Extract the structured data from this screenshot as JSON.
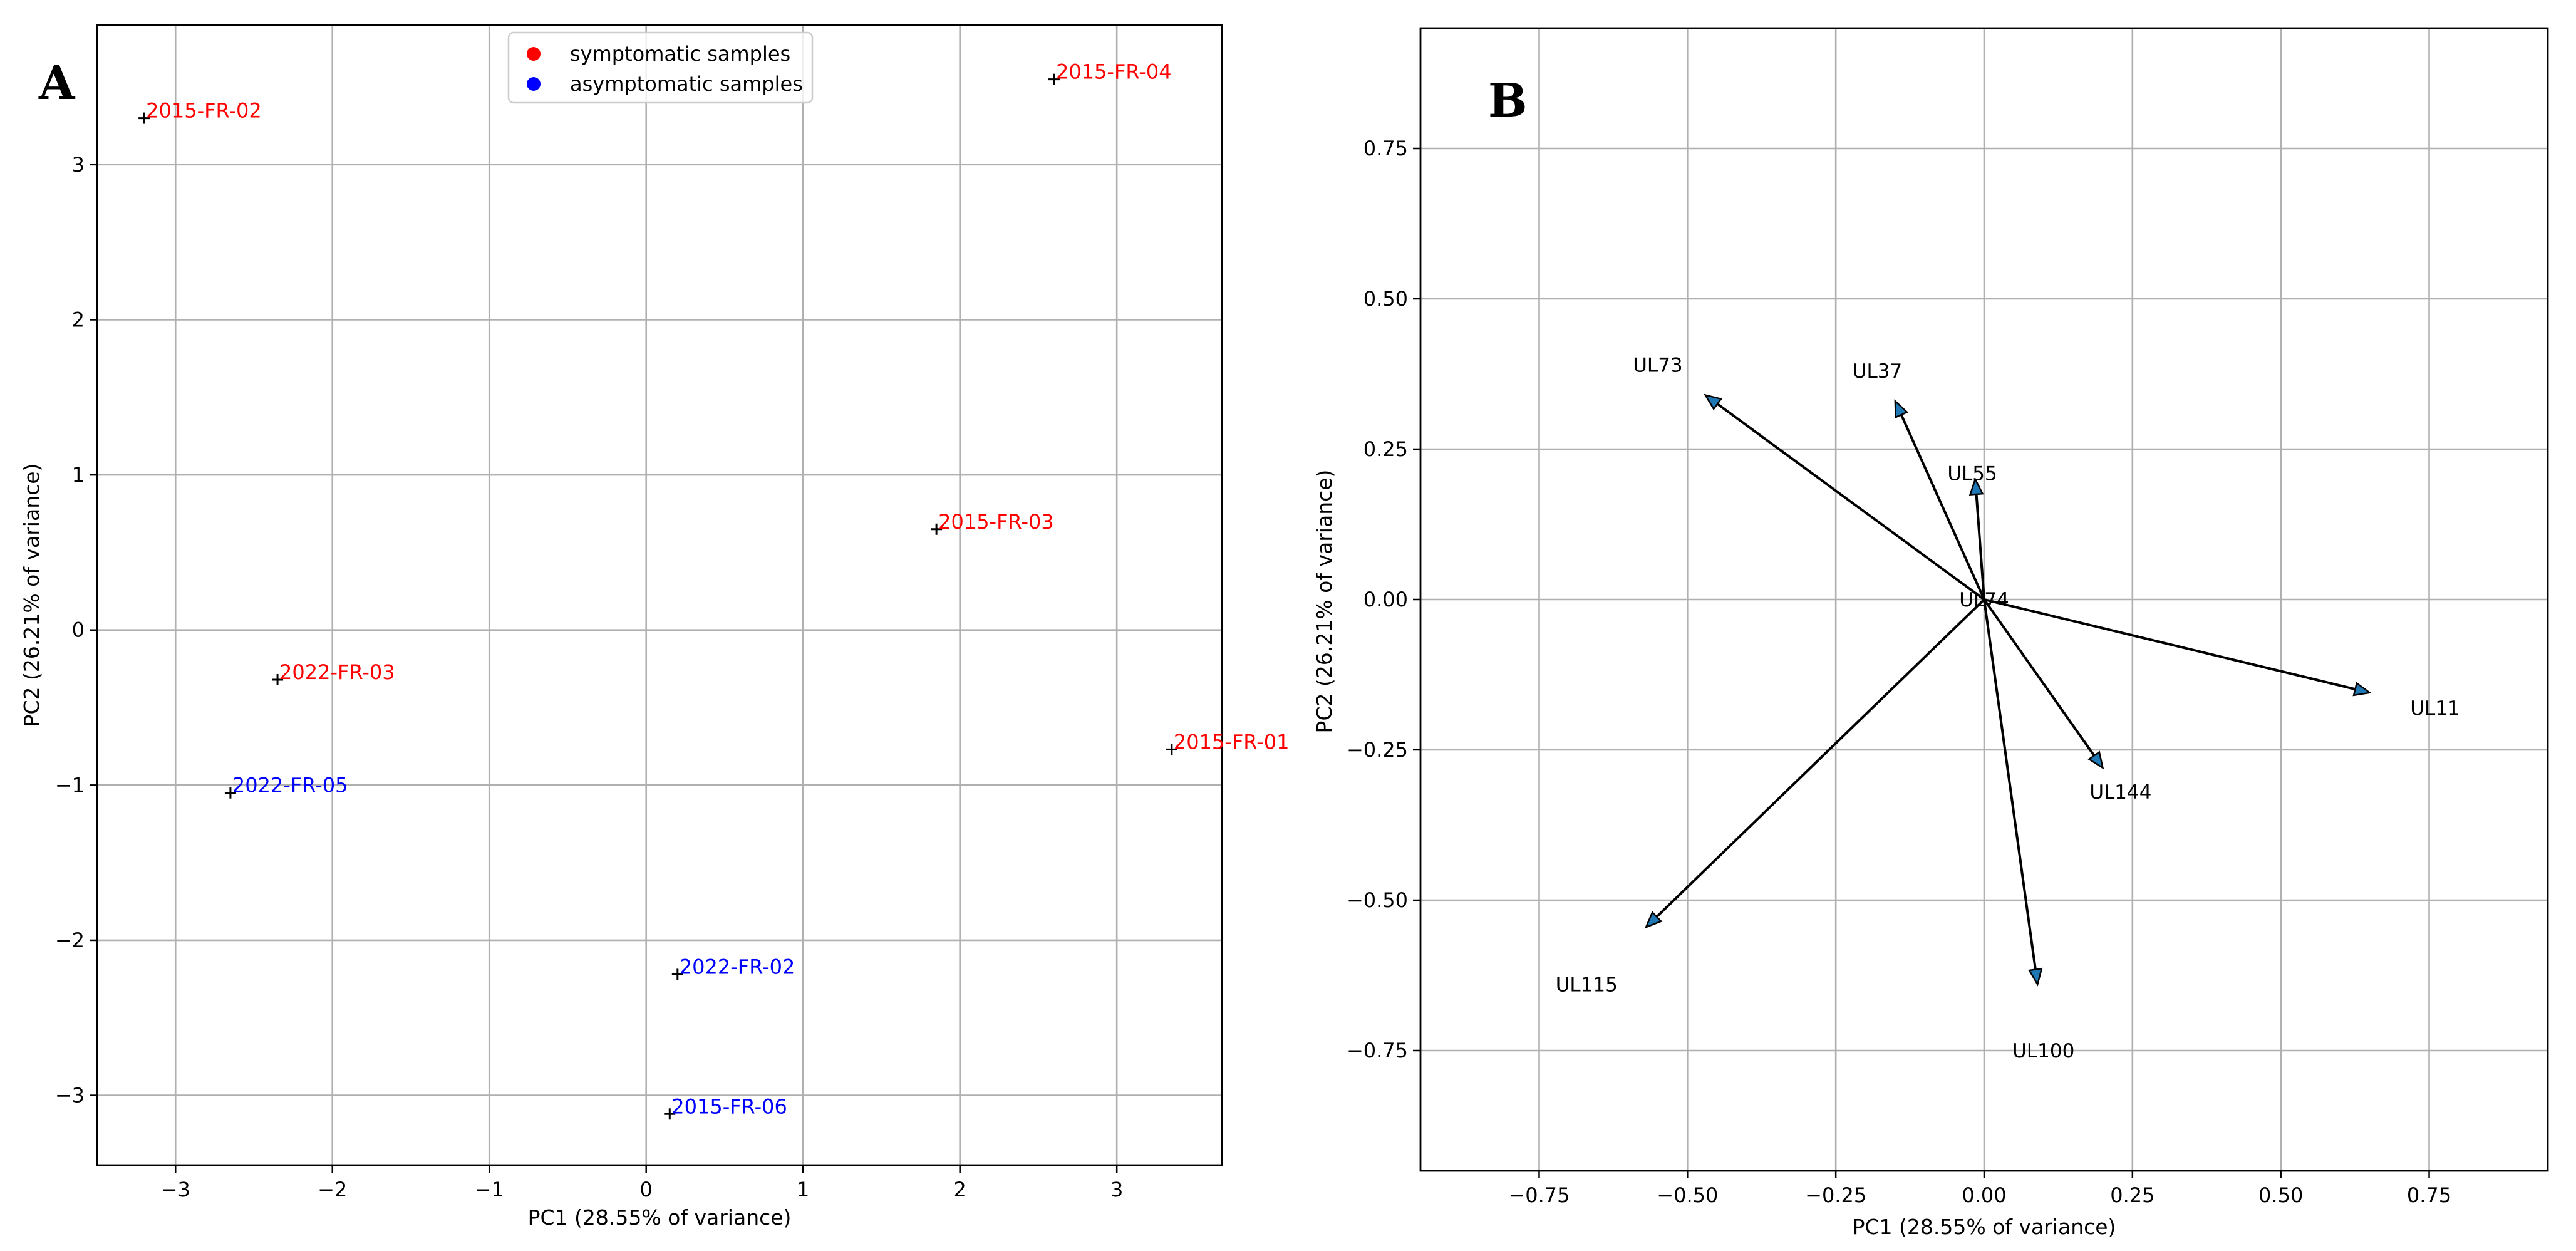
{
  "chart_data": [
    {
      "panel": "A",
      "type": "scatter",
      "xlabel": "PC1 (28.55% of variance)",
      "ylabel": "PC2 (26.21% of variance)",
      "xlim": [
        -3.5,
        3.67
      ],
      "ylim": [
        -3.45,
        3.9
      ],
      "xticks": [
        -3,
        -2,
        -1,
        0,
        1,
        2,
        3
      ],
      "yticks": [
        -3,
        -2,
        -1,
        0,
        1,
        2,
        3
      ],
      "grid": true,
      "legend": {
        "position": "top-center",
        "entries": [
          {
            "label": "symptomatic samples",
            "color": "#ff0000"
          },
          {
            "label": "asymptomatic samples",
            "color": "#0000ff"
          }
        ]
      },
      "points": [
        {
          "label": "2015-FR-02",
          "x": -3.2,
          "y": 3.3,
          "group": "symptomatic"
        },
        {
          "label": "2015-FR-04",
          "x": 2.6,
          "y": 3.55,
          "group": "symptomatic"
        },
        {
          "label": "2015-FR-03",
          "x": 1.85,
          "y": 0.65,
          "group": "symptomatic"
        },
        {
          "label": "2022-FR-03",
          "x": -2.35,
          "y": -0.32,
          "group": "symptomatic"
        },
        {
          "label": "2015-FR-01",
          "x": 3.35,
          "y": -0.77,
          "group": "symptomatic"
        },
        {
          "label": "2022-FR-05",
          "x": -2.65,
          "y": -1.05,
          "group": "asymptomatic"
        },
        {
          "label": "2022-FR-02",
          "x": 0.2,
          "y": -2.22,
          "group": "asymptomatic"
        },
        {
          "label": "2015-FR-06",
          "x": 0.15,
          "y": -3.12,
          "group": "asymptomatic"
        }
      ],
      "colors": {
        "symptomatic": "#ff0000",
        "asymptomatic": "#0000ff",
        "marker": "#000000"
      }
    },
    {
      "panel": "B",
      "type": "biplot-vectors",
      "xlabel": "PC1 (28.55% of variance)",
      "ylabel": "PC2 (26.21% of variance)",
      "xlim": [
        -0.95,
        0.95
      ],
      "ylim": [
        -0.95,
        0.95
      ],
      "xticks": [
        -0.75,
        -0.5,
        -0.25,
        0.0,
        0.25,
        0.5,
        0.75
      ],
      "xtick_labels": [
        "−0.75",
        "−0.50",
        "−0.25",
        "0.00",
        "0.25",
        "0.50",
        "0.75"
      ],
      "yticks": [
        0.75,
        0.5,
        0.25,
        0.0,
        -0.25,
        -0.5,
        -0.75
      ],
      "ytick_labels": [
        "0.75",
        "0.50",
        "0.25",
        "0.00",
        "−0.25",
        "−0.50",
        "−0.75"
      ],
      "grid": true,
      "vectors": [
        {
          "label": "UL73",
          "x": -0.47,
          "y": 0.34,
          "lx": -0.55,
          "ly": 0.39
        },
        {
          "label": "UL37",
          "x": -0.15,
          "y": 0.33,
          "lx": -0.18,
          "ly": 0.38
        },
        {
          "label": "UL55",
          "x": -0.015,
          "y": 0.2,
          "lx": -0.02,
          "ly": 0.21
        },
        {
          "label": "UL74",
          "x": 0.0,
          "y": 0.0,
          "lx": 0.0,
          "ly": 0.0
        },
        {
          "label": "UL11",
          "x": 0.65,
          "y": -0.155,
          "lx": 0.76,
          "ly": -0.18
        },
        {
          "label": "UL144",
          "x": 0.2,
          "y": -0.28,
          "lx": 0.23,
          "ly": -0.32
        },
        {
          "label": "UL100",
          "x": 0.09,
          "y": -0.64,
          "lx": 0.1,
          "ly": -0.75
        },
        {
          "label": "UL115",
          "x": -0.57,
          "y": -0.545,
          "lx": -0.67,
          "ly": -0.64
        }
      ],
      "colors": {
        "arrow_line": "#000000",
        "arrow_head": "#1f77b4"
      }
    }
  ],
  "panel_letters": {
    "a": "A",
    "b": "B"
  },
  "symbols": {
    "minus": "−"
  }
}
